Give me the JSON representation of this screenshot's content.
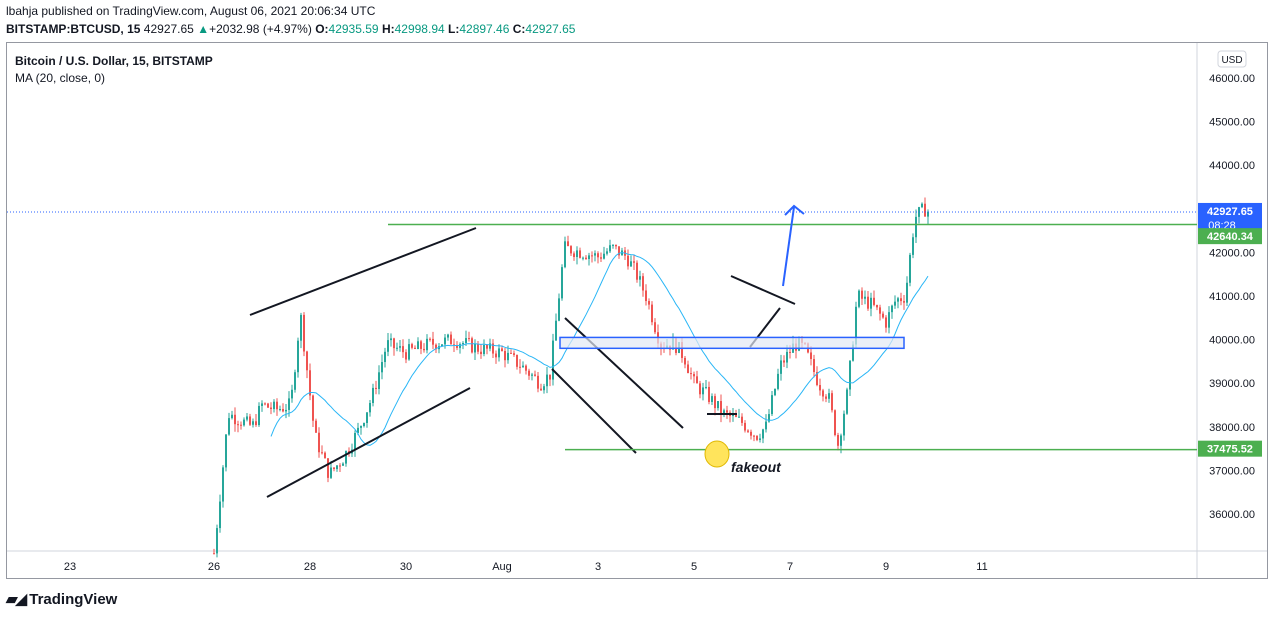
{
  "header": {
    "published": "lbahja published on TradingView.com, August 06, 2021 20:06:34 UTC",
    "symbol": "BITSTAMP:BTCUSD, 15",
    "last": "42927.65",
    "change_arrow": "▲",
    "change": "+2032.98 (+4.97%)",
    "o_label": "O:",
    "o": "42935.59",
    "h_label": "H:",
    "h": "42998.94",
    "l_label": "L:",
    "l": "42897.46",
    "c_label": "C:",
    "c": "42927.65"
  },
  "legend": {
    "symbol_title": "Bitcoin / U.S. Dollar, 15, BITSTAMP",
    "indicator": "MA (20, close, 0)"
  },
  "currency_badge": "USD",
  "price_tags": {
    "last_price": "42927.65",
    "countdown": "08:28",
    "resistance": "42640.34",
    "support": "37475.52"
  },
  "annotation": "fakeout",
  "brand": "TradingView",
  "colors": {
    "up": "#089981",
    "candle_up": "#26a69a",
    "candle_down": "#ef5350",
    "ma": "#29b6f6",
    "level_line": "#4caf50",
    "last_price_tag": "#2962ff",
    "zone_border": "#2962ff",
    "zone_fill": "#e3e8f3",
    "arrow": "#2962ff",
    "fakeout_marker": "#ffe45c"
  },
  "chart_data": {
    "type": "candlestick",
    "y_ticks": [
      "46000.00",
      "45000.00",
      "44000.00",
      "43000.00",
      "42000.00",
      "41000.00",
      "40000.00",
      "39000.00",
      "38000.00",
      "37000.00",
      "36000.00"
    ],
    "y_tick_values": [
      46000,
      45000,
      44000,
      43000,
      42000,
      41000,
      40000,
      39000,
      38000,
      37000,
      36000
    ],
    "x_ticks": [
      "23",
      "26",
      "28",
      "30",
      "Aug",
      "3",
      "5",
      "7",
      "9",
      "11"
    ],
    "ylim": [
      35200,
      46600
    ],
    "horizontal_levels": [
      42640.34,
      37475.52
    ],
    "demand_zone": [
      39800,
      40050
    ],
    "approx_price_path": [
      [
        0.0,
        35100
      ],
      [
        0.3,
        38300
      ],
      [
        0.8,
        38000
      ],
      [
        1.0,
        38500
      ],
      [
        1.3,
        38400
      ],
      [
        1.6,
        38500
      ],
      [
        1.8,
        40600
      ],
      [
        2.1,
        37800
      ],
      [
        2.4,
        36900
      ],
      [
        2.7,
        37300
      ],
      [
        3.0,
        37900
      ],
      [
        3.3,
        38700
      ],
      [
        3.6,
        39900
      ],
      [
        4.0,
        39700
      ],
      [
        4.5,
        39900
      ],
      [
        5.0,
        40000
      ],
      [
        5.5,
        39800
      ],
      [
        6.0,
        39700
      ],
      [
        6.4,
        39400
      ],
      [
        6.8,
        39000
      ],
      [
        7.0,
        39200
      ],
      [
        7.3,
        42100
      ],
      [
        7.7,
        42000
      ],
      [
        8.0,
        41900
      ],
      [
        8.3,
        42100
      ],
      [
        8.6,
        41900
      ],
      [
        8.8,
        41500
      ],
      [
        9.0,
        41000
      ],
      [
        9.3,
        39900
      ],
      [
        9.6,
        39900
      ],
      [
        9.8,
        39600
      ],
      [
        10.0,
        39000
      ],
      [
        10.3,
        38700
      ],
      [
        10.6,
        38300
      ],
      [
        11.0,
        38100
      ],
      [
        11.3,
        37800
      ],
      [
        11.5,
        38000
      ],
      [
        11.8,
        39400
      ],
      [
        12.1,
        39900
      ],
      [
        12.3,
        39800
      ],
      [
        12.6,
        39000
      ],
      [
        12.8,
        38700
      ],
      [
        13.0,
        37600
      ],
      [
        13.2,
        38800
      ],
      [
        13.4,
        41000
      ],
      [
        13.7,
        40800
      ],
      [
        14.0,
        40400
      ],
      [
        14.2,
        40900
      ],
      [
        14.4,
        41000
      ],
      [
        14.6,
        42800
      ],
      [
        14.8,
        43000
      ],
      [
        14.9,
        42927
      ]
    ],
    "ma_period": 20
  }
}
